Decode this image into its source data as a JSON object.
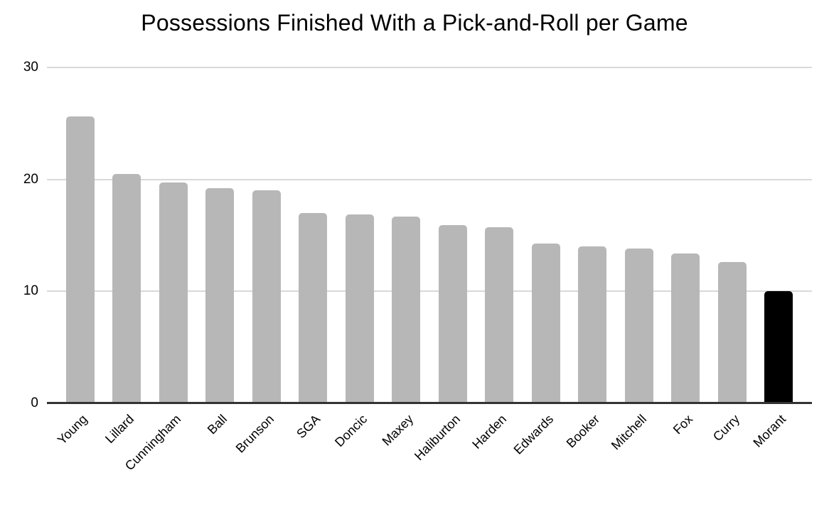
{
  "chart_data": {
    "type": "bar",
    "title": "Possessions Finished With a Pick-and-Roll per Game",
    "categories": [
      "Young",
      "Lillard",
      "Cunningham",
      "Ball",
      "Brunson",
      "SGA",
      "Doncic",
      "Maxey",
      "Haliburton",
      "Harden",
      "Edwards",
      "Booker",
      "Mitchell",
      "Fox",
      "Curry",
      "Morant"
    ],
    "values": [
      25.6,
      20.5,
      19.7,
      19.2,
      19.0,
      17.0,
      16.9,
      16.7,
      15.9,
      15.7,
      14.3,
      14.0,
      13.8,
      13.4,
      12.6,
      10.0
    ],
    "xlabel": "",
    "ylabel": "",
    "ylim": [
      0,
      30
    ],
    "yticks": [
      0,
      10,
      20,
      30
    ],
    "grid": true,
    "legend": "none",
    "colors": {
      "bar_default": "#b7b7b7",
      "bar_highlight": "#000000",
      "gridline": "#d9d9d9",
      "axis_line": "#333333",
      "text": "#000000",
      "background": "#ffffff"
    },
    "highlight_category": "Morant"
  }
}
